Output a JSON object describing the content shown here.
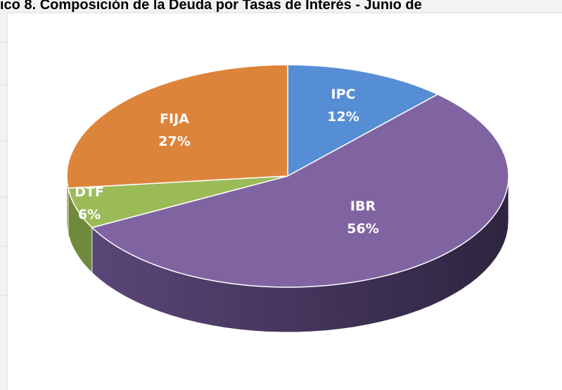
{
  "chart_data": {
    "type": "pie",
    "title": "ico 8. Composición de la Deuda por Tasas de Interés - Junio de",
    "categories": [
      "IPC",
      "IBR",
      "DTF",
      "FIJA"
    ],
    "values": [
      12,
      56,
      6,
      27
    ],
    "value_labels": [
      "12%",
      "56%",
      "6%",
      "27%"
    ],
    "colors": [
      "#558ed5",
      "#8064a2",
      "#9bbb59",
      "#dd843b"
    ],
    "side_colors": [
      "#3b6aa5",
      "#5a4677",
      "#6f8a3c",
      "#a9612a"
    ]
  }
}
